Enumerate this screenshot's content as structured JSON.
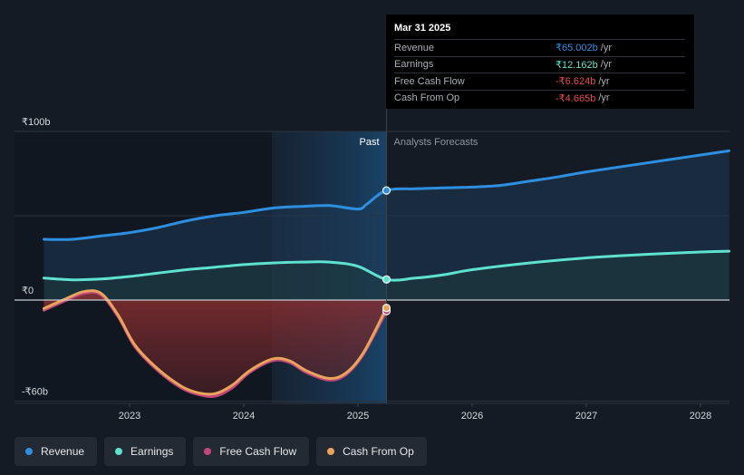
{
  "chart_data": {
    "type": "line",
    "x_axis": {
      "ticks": [
        "2023",
        "2024",
        "2025",
        "2026",
        "2027",
        "2028"
      ]
    },
    "y_axis": {
      "unit": "₹b",
      "ticks": [
        {
          "label": "₹100b",
          "value": 100
        },
        {
          "label": "₹0",
          "value": 0
        },
        {
          "label": "-₹60b",
          "value": -60
        }
      ],
      "ylim": [
        -60,
        100
      ]
    },
    "regions": {
      "past_label": "Past",
      "forecast_label": "Analysts Forecasts"
    },
    "grid": true,
    "legend_placement": "bottom",
    "series": [
      {
        "name": "Revenue",
        "color": "#2e8fe0",
        "fill": "#1e3954",
        "forecast": true,
        "points": [
          [
            2022.25,
            36
          ],
          [
            2022.5,
            36
          ],
          [
            2022.75,
            38
          ],
          [
            2023.0,
            40
          ],
          [
            2023.25,
            43
          ],
          [
            2023.5,
            47
          ],
          [
            2023.75,
            50
          ],
          [
            2024.0,
            52
          ],
          [
            2024.25,
            54.5
          ],
          [
            2024.5,
            55.5
          ],
          [
            2024.75,
            56
          ],
          [
            2025.0,
            54
          ],
          [
            2025.08,
            57
          ],
          [
            2025.25,
            65
          ],
          [
            2025.5,
            66
          ],
          [
            2025.75,
            66.5
          ],
          [
            2026.0,
            67
          ],
          [
            2026.25,
            68
          ],
          [
            2026.5,
            70.5
          ],
          [
            2026.75,
            73
          ],
          [
            2027.0,
            76
          ],
          [
            2027.5,
            81
          ],
          [
            2028.0,
            86
          ],
          [
            2028.25,
            88.5
          ]
        ]
      },
      {
        "name": "Earnings",
        "color": "#5ee2cf",
        "fill": "#1d3a3c",
        "forecast": true,
        "points": [
          [
            2022.25,
            13
          ],
          [
            2022.5,
            12
          ],
          [
            2022.75,
            12.5
          ],
          [
            2023.0,
            14
          ],
          [
            2023.25,
            16
          ],
          [
            2023.5,
            18
          ],
          [
            2023.75,
            19.5
          ],
          [
            2024.0,
            21
          ],
          [
            2024.25,
            22
          ],
          [
            2024.5,
            22.5
          ],
          [
            2024.75,
            22.5
          ],
          [
            2025.0,
            20
          ],
          [
            2025.25,
            12.2
          ],
          [
            2025.5,
            13
          ],
          [
            2025.75,
            15
          ],
          [
            2026.0,
            18
          ],
          [
            2026.5,
            22
          ],
          [
            2027.0,
            25
          ],
          [
            2027.5,
            27
          ],
          [
            2028.0,
            28.5
          ],
          [
            2028.25,
            29
          ]
        ]
      },
      {
        "name": "Free Cash Flow",
        "color": "#c1457b",
        "fill": "#6e2a2e",
        "forecast": false,
        "points": [
          [
            2022.25,
            -6
          ],
          [
            2022.45,
            0
          ],
          [
            2022.6,
            4
          ],
          [
            2022.75,
            3
          ],
          [
            2022.9,
            -10
          ],
          [
            2023.05,
            -28
          ],
          [
            2023.25,
            -42
          ],
          [
            2023.45,
            -52
          ],
          [
            2023.6,
            -56
          ],
          [
            2023.75,
            -57
          ],
          [
            2023.9,
            -52
          ],
          [
            2024.05,
            -43
          ],
          [
            2024.25,
            -36
          ],
          [
            2024.4,
            -37
          ],
          [
            2024.55,
            -43
          ],
          [
            2024.75,
            -47.5
          ],
          [
            2024.9,
            -44
          ],
          [
            2025.05,
            -32
          ],
          [
            2025.25,
            -6.6
          ]
        ]
      },
      {
        "name": "Cash From Op",
        "color": "#e8a45a",
        "fill": "#6e2a2e",
        "forecast": false,
        "points": [
          [
            2022.25,
            -5
          ],
          [
            2022.45,
            1
          ],
          [
            2022.6,
            5
          ],
          [
            2022.75,
            4
          ],
          [
            2022.9,
            -9
          ],
          [
            2023.05,
            -27
          ],
          [
            2023.25,
            -41
          ],
          [
            2023.45,
            -51
          ],
          [
            2023.6,
            -55
          ],
          [
            2023.75,
            -55.5
          ],
          [
            2023.9,
            -50.5
          ],
          [
            2024.05,
            -42
          ],
          [
            2024.25,
            -35
          ],
          [
            2024.4,
            -36
          ],
          [
            2024.55,
            -42
          ],
          [
            2024.75,
            -46.5
          ],
          [
            2024.9,
            -43
          ],
          [
            2025.05,
            -31
          ],
          [
            2025.25,
            -4.7
          ]
        ]
      }
    ],
    "highlight": {
      "x": 2025.25,
      "date": "Mar 31 2025"
    }
  },
  "tooltip": {
    "date": "Mar 31 2025",
    "unit": "/yr",
    "rows": [
      {
        "label": "Revenue",
        "value": "₹65.002b",
        "color": "#2e8fe0"
      },
      {
        "label": "Earnings",
        "value": "₹12.162b",
        "color": "#5ee2cf"
      },
      {
        "label": "Free Cash Flow",
        "value": "-₹6.624b",
        "color": "#e84a4a"
      },
      {
        "label": "Cash From Op",
        "value": "-₹4.665b",
        "color": "#e84a4a"
      }
    ]
  },
  "legend": [
    {
      "label": "Revenue",
      "color": "#2e8fe0"
    },
    {
      "label": "Earnings",
      "color": "#5ee2cf"
    },
    {
      "label": "Free Cash Flow",
      "color": "#c1457b"
    },
    {
      "label": "Cash From Op",
      "color": "#e8a45a"
    }
  ]
}
